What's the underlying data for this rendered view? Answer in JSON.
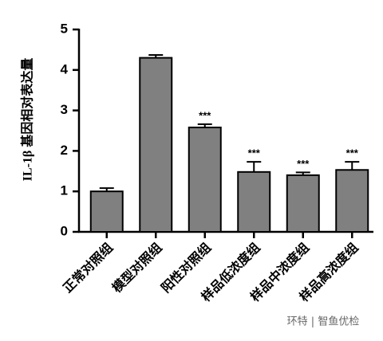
{
  "chart_data": {
    "type": "bar",
    "y_label": "IL-1β 基因相对表达量",
    "categories": [
      "正常对照组",
      "模型对照组",
      "阳性对照组",
      "样品低浓度组",
      "样品中浓度组",
      "样品高浓度组"
    ],
    "values": [
      1.0,
      4.3,
      2.58,
      1.48,
      1.4,
      1.53
    ],
    "errors": [
      0.08,
      0.07,
      0.08,
      0.25,
      0.07,
      0.2
    ],
    "annotations": [
      null,
      null,
      "***",
      "***",
      "***",
      "***"
    ],
    "color": "#808080",
    "ylim": [
      0,
      5
    ],
    "yticks": [
      0,
      1,
      2,
      3,
      4,
      5
    ],
    "watermark": "环特 | 智鱼优检"
  }
}
